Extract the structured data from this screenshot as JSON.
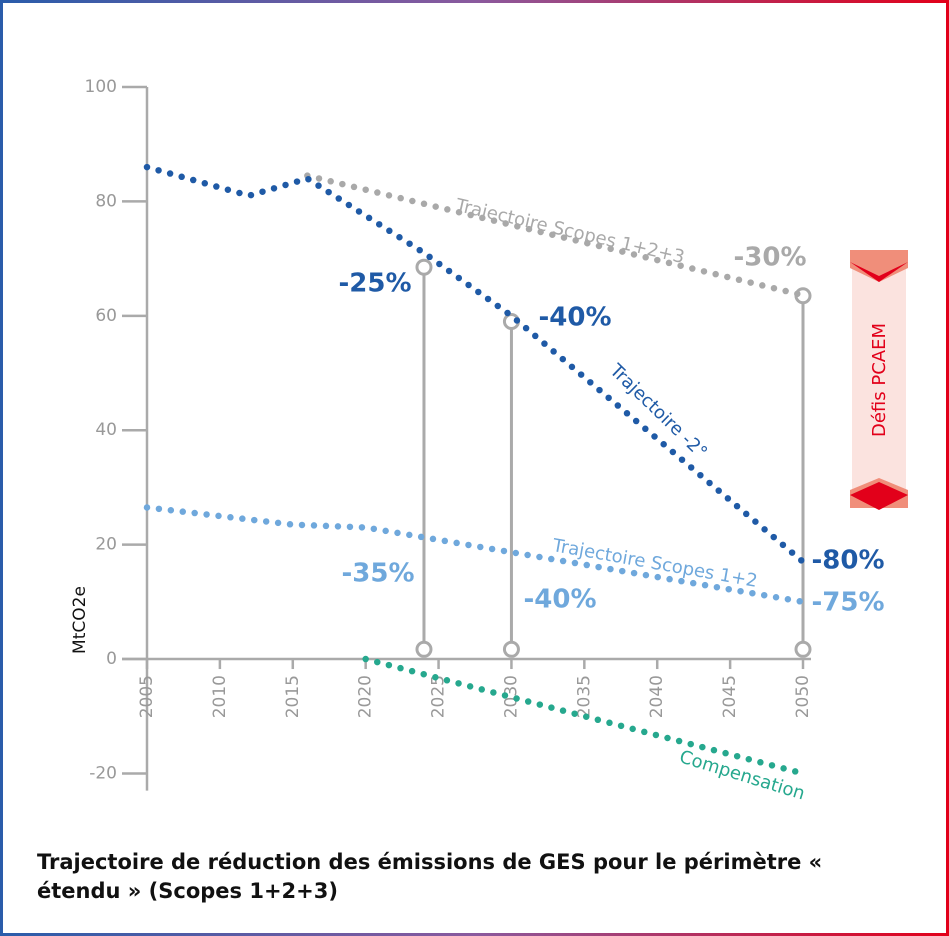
{
  "chart_data": {
    "type": "line",
    "title": "Trajectoire de réduction des émissions de GES pour le périmètre « étendu » (Scopes 1+2+3)",
    "y_label": "MtCO2e",
    "xlim": [
      2005,
      2050
    ],
    "ylim": [
      -23,
      100
    ],
    "xticks": [
      2005,
      2010,
      2015,
      2020,
      2025,
      2030,
      2035,
      2040,
      2045,
      2050
    ],
    "yticks": [
      -20,
      0,
      20,
      40,
      60,
      80,
      100
    ],
    "series": [
      {
        "name": "Trajectoire Scopes 1+2+3",
        "color": "#a9a9a9",
        "x": [
          2016,
          2050
        ],
        "values": [
          84.5,
          63.6
        ]
      },
      {
        "name": "Trajectoire -2°",
        "color": "#1f5aa6",
        "x": [
          2005,
          2012,
          2016,
          2024,
          2030,
          2050
        ],
        "values": [
          86,
          81,
          84,
          71,
          60,
          17
        ]
      },
      {
        "name": "Trajectoire Scopes 1+2",
        "color": "#6fa8dc",
        "x": [
          2005,
          2015,
          2020,
          2050
        ],
        "values": [
          26.5,
          23.5,
          23,
          10
        ]
      },
      {
        "name": "Compensation",
        "color": "#26a88e",
        "x": [
          2020,
          2050
        ],
        "values": [
          0,
          -20
        ]
      }
    ],
    "markers": [
      {
        "x": 2024,
        "top": 68.5,
        "bottom": 1.7
      },
      {
        "x": 2030,
        "top": 59,
        "bottom": 1.7
      },
      {
        "x": 2050,
        "top": 63.5,
        "bottom": 1.7
      }
    ],
    "annotations": [
      {
        "text": "-30%",
        "color": "#a9a9a9"
      },
      {
        "text": "-25%",
        "color": "#1f5aa6"
      },
      {
        "text": "-40%",
        "color": "#1f5aa6"
      },
      {
        "text": "-80%",
        "color": "#1f5aa6"
      },
      {
        "text": "-35%",
        "color": "#6fa8dc"
      },
      {
        "text": "-40%",
        "color": "#6fa8dc"
      },
      {
        "text": "-75%",
        "color": "#6fa8dc"
      }
    ],
    "side_label": "Défis PCAEM",
    "side_color": "#e2001a"
  }
}
